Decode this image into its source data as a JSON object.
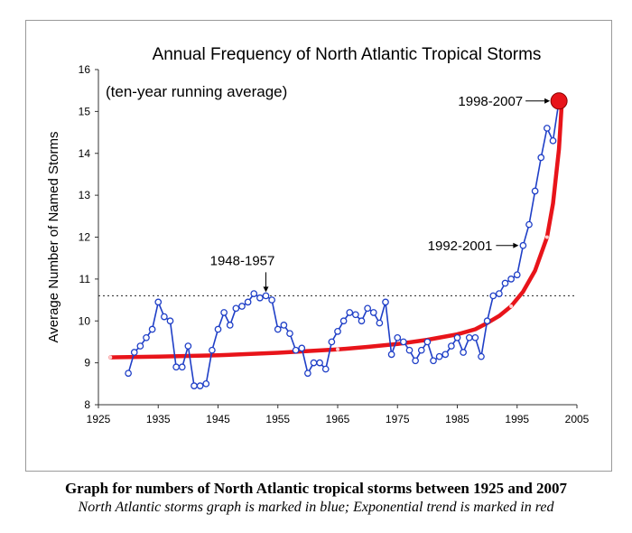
{
  "chart_data": {
    "type": "line",
    "title": "Annual Frequency of North Atlantic Tropical Storms",
    "subtitle": "(ten-year running average)",
    "xlabel": "",
    "ylabel": "Average Number of Named Storms",
    "xlim": [
      1925,
      2005
    ],
    "ylim": [
      8,
      16
    ],
    "x_ticks": [
      "1925",
      "1935",
      "1945",
      "1955",
      "1965",
      "1975",
      "1985",
      "1995",
      "2005"
    ],
    "y_ticks": [
      "8",
      "9",
      "10",
      "11",
      "12",
      "13",
      "14",
      "15",
      "16"
    ],
    "reference_line": {
      "y": 10.6,
      "style": "dotted"
    },
    "series": [
      {
        "color": "#1f3fc7",
        "points": [
          [
            1930,
            8.75
          ],
          [
            1931,
            9.25
          ],
          [
            1932,
            9.4
          ],
          [
            1933,
            9.6
          ],
          [
            1934,
            9.8
          ],
          [
            1935,
            10.45
          ],
          [
            1936,
            10.1
          ],
          [
            1937,
            10.0
          ],
          [
            1938,
            8.9
          ],
          [
            1939,
            8.9
          ],
          [
            1940,
            9.4
          ],
          [
            1941,
            8.45
          ],
          [
            1942,
            8.45
          ],
          [
            1943,
            8.5
          ],
          [
            1944,
            9.3
          ],
          [
            1945,
            9.8
          ],
          [
            1946,
            10.2
          ],
          [
            1947,
            9.9
          ],
          [
            1948,
            10.3
          ],
          [
            1949,
            10.35
          ],
          [
            1950,
            10.45
          ],
          [
            1951,
            10.65
          ],
          [
            1952,
            10.55
          ],
          [
            1953,
            10.6
          ],
          [
            1954,
            10.5
          ],
          [
            1955,
            9.8
          ],
          [
            1956,
            9.9
          ],
          [
            1957,
            9.7
          ],
          [
            1958,
            9.3
          ],
          [
            1959,
            9.35
          ],
          [
            1960,
            8.75
          ],
          [
            1961,
            9.0
          ],
          [
            1962,
            9.0
          ],
          [
            1963,
            8.85
          ],
          [
            1964,
            9.5
          ],
          [
            1965,
            9.75
          ],
          [
            1966,
            10.0
          ],
          [
            1967,
            10.2
          ],
          [
            1968,
            10.15
          ],
          [
            1969,
            10.0
          ],
          [
            1970,
            10.3
          ],
          [
            1971,
            10.2
          ],
          [
            1972,
            9.95
          ],
          [
            1973,
            10.45
          ],
          [
            1974,
            9.2
          ],
          [
            1975,
            9.6
          ],
          [
            1976,
            9.5
          ],
          [
            1977,
            9.3
          ],
          [
            1978,
            9.05
          ],
          [
            1979,
            9.3
          ],
          [
            1980,
            9.5
          ],
          [
            1981,
            9.05
          ],
          [
            1982,
            9.15
          ],
          [
            1983,
            9.2
          ],
          [
            1984,
            9.4
          ],
          [
            1985,
            9.6
          ],
          [
            1986,
            9.25
          ],
          [
            1987,
            9.6
          ],
          [
            1988,
            9.6
          ],
          [
            1989,
            9.15
          ],
          [
            1990,
            10.0
          ],
          [
            1991,
            10.6
          ],
          [
            1992,
            10.65
          ],
          [
            1993,
            10.9
          ],
          [
            1994,
            11.0
          ],
          [
            1995,
            11.1
          ],
          [
            1996,
            11.8
          ],
          [
            1997,
            12.3
          ],
          [
            1998,
            13.1
          ],
          [
            1999,
            13.9
          ],
          [
            2000,
            14.6
          ],
          [
            2001,
            14.3
          ],
          [
            2002,
            15.25
          ]
        ]
      },
      {
        "color": "#e8141a",
        "points": [
          [
            1927,
            9.13
          ],
          [
            1935,
            9.15
          ],
          [
            1945,
            9.18
          ],
          [
            1955,
            9.24
          ],
          [
            1965,
            9.32
          ],
          [
            1970,
            9.38
          ],
          [
            1975,
            9.45
          ],
          [
            1980,
            9.55
          ],
          [
            1985,
            9.68
          ],
          [
            1988,
            9.8
          ],
          [
            1990,
            9.95
          ],
          [
            1992,
            10.12
          ],
          [
            1994,
            10.35
          ],
          [
            1996,
            10.7
          ],
          [
            1998,
            11.2
          ],
          [
            2000,
            12.0
          ],
          [
            2001,
            12.8
          ],
          [
            2002,
            14.1
          ],
          [
            2002.5,
            15.25
          ]
        ]
      }
    ],
    "annotations": [
      {
        "text": "1948-1957",
        "x": 1953,
        "y": 10.6
      },
      {
        "text": "1992-2001",
        "x": 1996,
        "y": 11.8
      },
      {
        "text": "1998-2007",
        "x": 2002,
        "y": 15.25
      }
    ]
  },
  "caption": {
    "line1": "Graph for numbers of North Atlantic tropical storms between 1925 and 2007",
    "line2": "North Atlantic storms graph is marked in blue; Exponential trend is marked in red"
  }
}
